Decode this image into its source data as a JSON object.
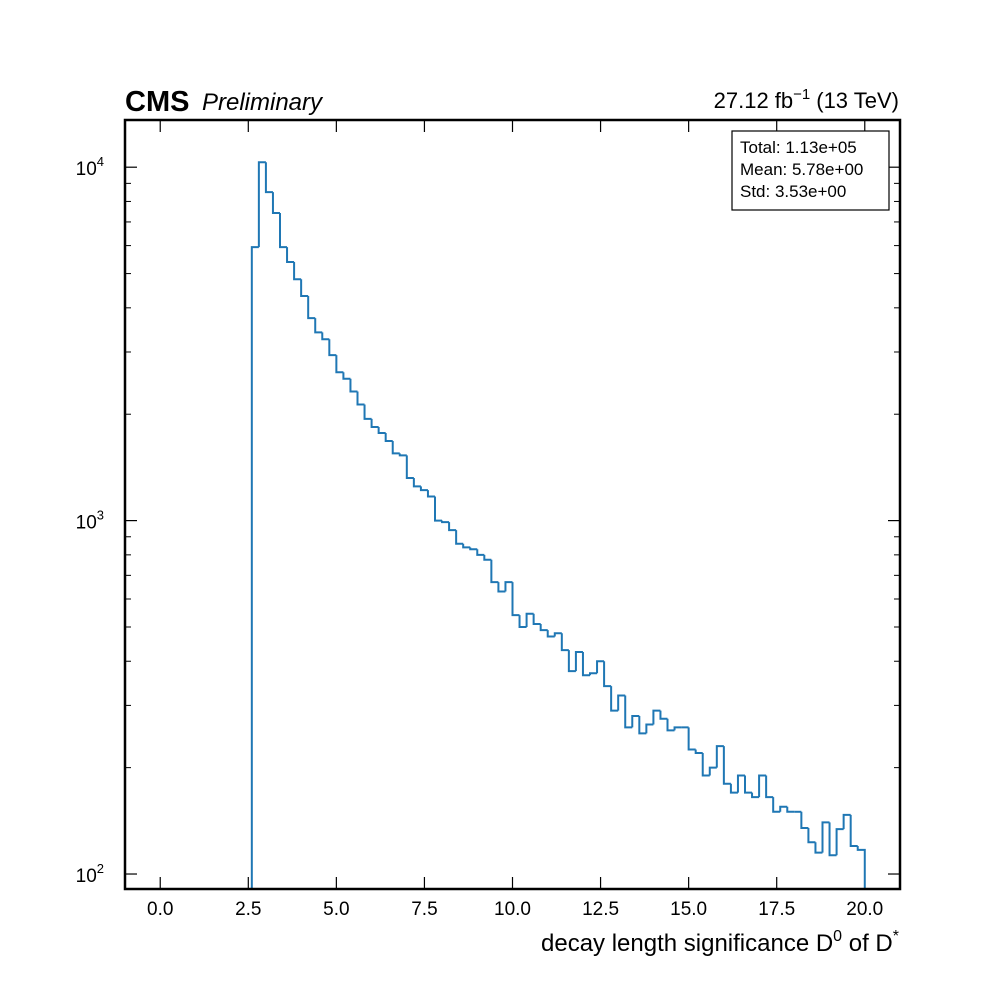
{
  "chart_data": {
    "type": "histogram",
    "experiment": "CMS",
    "status": "Preliminary",
    "lumi": "27.12 fb",
    "lumi_exponent": "−1",
    "energy": "(13 TeV)",
    "xlabel": [
      "decay length significance D",
      "0",
      " of D",
      "*"
    ],
    "stats": [
      "Total: 1.13e+05",
      "Mean: 5.78e+00",
      "Std: 3.53e+00"
    ],
    "color": "#1f77b4",
    "log_y": true,
    "xlim": [
      -1,
      21
    ],
    "ylim": [
      90.7,
      13600
    ],
    "xticks": [
      {
        "value": 0,
        "label": "0.0"
      },
      {
        "value": 2.5,
        "label": "2.5"
      },
      {
        "value": 5,
        "label": "5.0"
      },
      {
        "value": 7.5,
        "label": "7.5"
      },
      {
        "value": 10,
        "label": "10.0"
      },
      {
        "value": 12.5,
        "label": "12.5"
      },
      {
        "value": 15,
        "label": "15.0"
      },
      {
        "value": 17.5,
        "label": "17.5"
      },
      {
        "value": 20,
        "label": "20.0"
      }
    ],
    "yticks": [
      {
        "value": 100,
        "label": "10",
        "exponent": "2"
      },
      {
        "value": 1000,
        "label": "10",
        "exponent": "3"
      },
      {
        "value": 10000,
        "label": "10",
        "exponent": "4"
      }
    ],
    "yminor_ticks": [
      200,
      300,
      400,
      500,
      600,
      700,
      800,
      900,
      2000,
      3000,
      4000,
      5000,
      6000,
      7000,
      8000,
      9000
    ],
    "bins": [
      2.6,
      2.8,
      3.0,
      3.2,
      3.4,
      3.6,
      3.8,
      4.0,
      4.2,
      4.4,
      4.6,
      4.8,
      5.0,
      5.2,
      5.4,
      5.6,
      5.8,
      6.0,
      6.2,
      6.4,
      6.6,
      6.8,
      7.0,
      7.2,
      7.4,
      7.6,
      7.8,
      8.0,
      8.2,
      8.4,
      8.6,
      8.8,
      9.0,
      9.2,
      9.4,
      9.6,
      9.8,
      10.0,
      10.2,
      10.4,
      10.6,
      10.8,
      11.0,
      11.2,
      11.4,
      11.6,
      11.8,
      12.0,
      12.2,
      12.4,
      12.6,
      12.8,
      13.0,
      13.2,
      13.4,
      13.6,
      13.8,
      14.0,
      14.2,
      14.4,
      14.6,
      14.8,
      15.0,
      15.2,
      15.4,
      15.6,
      15.8,
      16.0,
      16.2,
      16.4,
      16.6,
      16.8,
      17.0,
      17.2,
      17.4,
      17.6,
      17.8,
      18.0,
      18.2,
      18.4,
      18.6,
      18.8,
      19.0,
      19.2,
      19.4,
      19.6,
      19.8,
      20.0
    ],
    "values": [
      5940,
      10330,
      8500,
      7420,
      5940,
      5390,
      4820,
      4320,
      3740,
      3410,
      3260,
      2940,
      2630,
      2520,
      2320,
      2130,
      1940,
      1840,
      1770,
      1680,
      1550,
      1530,
      1320,
      1250,
      1220,
      1170,
      1000,
      990,
      940,
      860,
      840,
      830,
      800,
      775,
      670,
      630,
      670,
      540,
      500,
      545,
      510,
      490,
      470,
      480,
      430,
      375,
      425,
      365,
      370,
      400,
      340,
      290,
      320,
      260,
      280,
      250,
      265,
      290,
      275,
      255,
      260,
      260,
      225,
      220,
      190,
      200,
      230,
      180,
      170,
      190,
      170,
      165,
      190,
      165,
      150,
      155,
      150,
      150,
      135,
      123,
      115,
      140,
      113,
      134,
      147,
      120,
      117
    ]
  }
}
